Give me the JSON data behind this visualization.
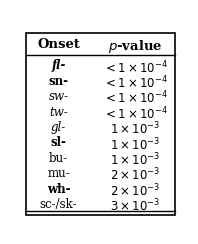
{
  "title_onset": "Onset",
  "title_pvalue": "p-value",
  "rows": [
    {
      "onset": "fl-",
      "onset_bold": true,
      "onset_italic": true,
      "coeff": "< 1",
      "exp": "-4"
    },
    {
      "onset": "sn-",
      "onset_bold": true,
      "onset_italic": false,
      "coeff": "< 1",
      "exp": "-4"
    },
    {
      "onset": "sw-",
      "onset_bold": false,
      "onset_italic": true,
      "coeff": "< 1",
      "exp": "-4"
    },
    {
      "onset": "tw-",
      "onset_bold": false,
      "onset_italic": true,
      "coeff": "< 1",
      "exp": "-4"
    },
    {
      "onset": "gl-",
      "onset_bold": false,
      "onset_italic": true,
      "coeff": "1",
      "exp": "-3"
    },
    {
      "onset": "sl-",
      "onset_bold": true,
      "onset_italic": false,
      "coeff": "1",
      "exp": "-3"
    },
    {
      "onset": "bu-",
      "onset_bold": false,
      "onset_italic": false,
      "coeff": "1",
      "exp": "-3"
    },
    {
      "onset": "mu-",
      "onset_bold": false,
      "onset_italic": false,
      "coeff": "2",
      "exp": "-3"
    },
    {
      "onset": "wh-",
      "onset_bold": true,
      "onset_italic": false,
      "coeff": "2",
      "exp": "-3"
    },
    {
      "onset": "sc-/sk-",
      "onset_bold": false,
      "onset_italic": false,
      "coeff": "3",
      "exp": "-3"
    }
  ],
  "bg_color": "#ffffff",
  "border_color": "#000000",
  "font_size": 8.5,
  "header_font_size": 9.5
}
